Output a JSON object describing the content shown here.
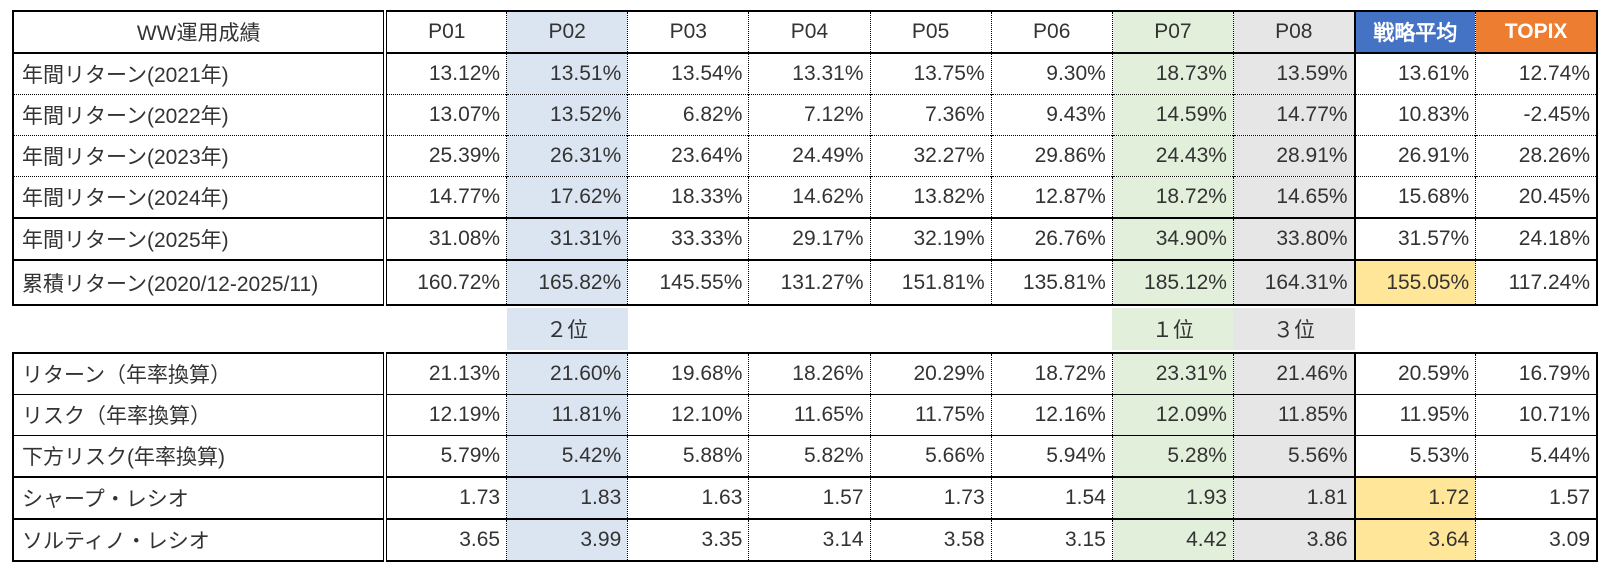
{
  "chart_data": {
    "type": "table",
    "title": "WW運用成績",
    "columns": [
      "P01",
      "P02",
      "P03",
      "P04",
      "P05",
      "P06",
      "P07",
      "P08",
      "戦略平均",
      "TOPIX"
    ],
    "colors": {
      "p02_column_bg": "#dbe5f1",
      "p07_column_bg": "#e2efda",
      "p08_column_bg": "#e7e6e6",
      "strategy_header_bg": "#4472c4",
      "topix_header_bg": "#ed7d31",
      "strategy_highlight_bg": "#ffe699",
      "header_text": "#ffffff",
      "body_text": "#333333"
    },
    "performance_rows": [
      {
        "label": "年間リターン(2021年)",
        "values": [
          "13.12%",
          "13.51%",
          "13.54%",
          "13.31%",
          "13.75%",
          "9.30%",
          "18.73%",
          "13.59%",
          "13.61%",
          "12.74%"
        ],
        "avg_highlight": false
      },
      {
        "label": "年間リターン(2022年)",
        "values": [
          "13.07%",
          "13.52%",
          "6.82%",
          "7.12%",
          "7.36%",
          "9.43%",
          "14.59%",
          "14.77%",
          "10.83%",
          "-2.45%"
        ],
        "avg_highlight": false
      },
      {
        "label": "年間リターン(2023年)",
        "values": [
          "25.39%",
          "26.31%",
          "23.64%",
          "24.49%",
          "32.27%",
          "29.86%",
          "24.43%",
          "28.91%",
          "26.91%",
          "28.26%"
        ],
        "avg_highlight": false
      },
      {
        "label": "年間リターン(2024年)",
        "values": [
          "14.77%",
          "17.62%",
          "18.33%",
          "14.62%",
          "13.82%",
          "12.87%",
          "18.72%",
          "14.65%",
          "15.68%",
          "20.45%"
        ],
        "avg_highlight": false
      },
      {
        "label": "年間リターン(2025年)",
        "values": [
          "31.08%",
          "31.31%",
          "33.33%",
          "29.17%",
          "32.19%",
          "26.76%",
          "34.90%",
          "33.80%",
          "31.57%",
          "24.18%"
        ],
        "avg_highlight": false
      },
      {
        "label": "累積リターン(2020/12-2025/11)",
        "values": [
          "160.72%",
          "165.82%",
          "145.55%",
          "131.27%",
          "151.81%",
          "135.81%",
          "185.12%",
          "164.31%",
          "155.05%",
          "117.24%"
        ],
        "avg_highlight": true
      }
    ],
    "rank_row": {
      "p02": "２位",
      "p07": "１位",
      "p08": "３位"
    },
    "stats_rows": [
      {
        "label": "リターン（年率換算）",
        "values": [
          "21.13%",
          "21.60%",
          "19.68%",
          "18.26%",
          "20.29%",
          "18.72%",
          "23.31%",
          "21.46%",
          "20.59%",
          "16.79%"
        ],
        "avg_highlight": false
      },
      {
        "label": "リスク（年率換算）",
        "values": [
          "12.19%",
          "11.81%",
          "12.10%",
          "11.65%",
          "11.75%",
          "12.16%",
          "12.09%",
          "11.85%",
          "11.95%",
          "10.71%"
        ],
        "avg_highlight": false
      },
      {
        "label": "下方リスク(年率換算)",
        "values": [
          "5.79%",
          "5.42%",
          "5.88%",
          "5.82%",
          "5.66%",
          "5.94%",
          "5.28%",
          "5.56%",
          "5.53%",
          "5.44%"
        ],
        "avg_highlight": false
      },
      {
        "label": "シャープ・レシオ",
        "values": [
          "1.73",
          "1.83",
          "1.63",
          "1.57",
          "1.73",
          "1.54",
          "1.93",
          "1.81",
          "1.72",
          "1.57"
        ],
        "avg_highlight": true
      },
      {
        "label": "ソルティノ・レシオ",
        "values": [
          "3.65",
          "3.99",
          "3.35",
          "3.14",
          "3.58",
          "3.15",
          "4.42",
          "3.86",
          "3.64",
          "3.09"
        ],
        "avg_highlight": true
      }
    ]
  }
}
